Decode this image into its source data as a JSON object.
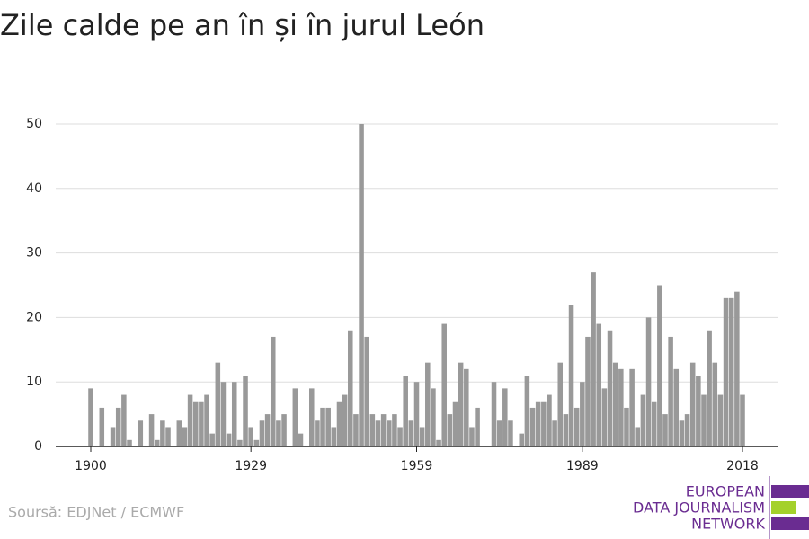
{
  "chart_data": {
    "type": "bar",
    "title": "Zile calde pe an în și în jurul León",
    "source": "Soursă: EDJNet / ECMWF",
    "logo": [
      "EUROPEAN",
      "DATA JOURNALISM",
      "NETWORK"
    ],
    "color": "#999999",
    "x": [
      1900,
      1901,
      1902,
      1903,
      1904,
      1905,
      1906,
      1907,
      1908,
      1909,
      1910,
      1911,
      1912,
      1913,
      1914,
      1915,
      1916,
      1917,
      1918,
      1919,
      1920,
      1921,
      1922,
      1923,
      1924,
      1925,
      1926,
      1927,
      1928,
      1929,
      1930,
      1931,
      1932,
      1933,
      1934,
      1935,
      1936,
      1937,
      1938,
      1939,
      1940,
      1941,
      1942,
      1943,
      1944,
      1945,
      1946,
      1947,
      1948,
      1949,
      1950,
      1951,
      1952,
      1953,
      1954,
      1955,
      1956,
      1957,
      1958,
      1959,
      1960,
      1961,
      1962,
      1963,
      1964,
      1965,
      1966,
      1967,
      1968,
      1969,
      1970,
      1971,
      1972,
      1973,
      1974,
      1975,
      1976,
      1977,
      1978,
      1979,
      1980,
      1981,
      1982,
      1983,
      1984,
      1985,
      1986,
      1987,
      1988,
      1989,
      1990,
      1991,
      1992,
      1993,
      1994,
      1995,
      1996,
      1997,
      1998,
      1999,
      2000,
      2001,
      2002,
      2003,
      2004,
      2005,
      2006,
      2007,
      2008,
      2009,
      2010,
      2011,
      2012,
      2013,
      2014,
      2015,
      2016,
      2017,
      2018
    ],
    "values": [
      9,
      0,
      6,
      0,
      3,
      6,
      8,
      1,
      0,
      4,
      0,
      5,
      1,
      4,
      3,
      0,
      4,
      3,
      8,
      7,
      7,
      8,
      2,
      13,
      10,
      2,
      10,
      1,
      11,
      3,
      1,
      4,
      5,
      17,
      4,
      5,
      0,
      9,
      2,
      0,
      9,
      4,
      6,
      6,
      3,
      7,
      8,
      18,
      5,
      50,
      17,
      5,
      4,
      5,
      4,
      5,
      3,
      11,
      4,
      10,
      3,
      13,
      9,
      1,
      19,
      5,
      7,
      13,
      12,
      3,
      6,
      0,
      0,
      10,
      4,
      9,
      4,
      0,
      2,
      11,
      6,
      7,
      7,
      8,
      4,
      13,
      5,
      22,
      6,
      10,
      17,
      27,
      19,
      9,
      18,
      13,
      12,
      6,
      12,
      3,
      8,
      20,
      7,
      25,
      5,
      17,
      12,
      4,
      5,
      13,
      11,
      8,
      18,
      13,
      8,
      23,
      23,
      24,
      8
    ],
    "xlim": [
      1900,
      2018
    ],
    "xticks": [
      1900,
      1929,
      1959,
      1989,
      2018
    ],
    "ylim": [
      0,
      50
    ],
    "yticks": [
      0,
      10,
      20,
      30,
      40,
      50
    ],
    "grid": true
  }
}
